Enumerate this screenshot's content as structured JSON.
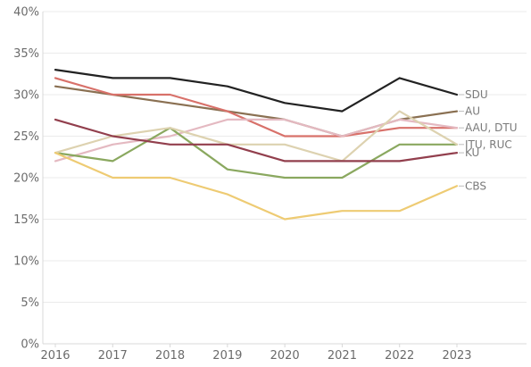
{
  "chart_data": {
    "type": "line",
    "title": "",
    "xlabel": "",
    "ylabel": "",
    "x": [
      2016,
      2017,
      2018,
      2019,
      2020,
      2021,
      2022,
      2023
    ],
    "ylim": [
      0,
      0.4
    ],
    "yticks": [
      0,
      0.05,
      0.1,
      0.15,
      0.2,
      0.25,
      0.3,
      0.35,
      0.4
    ],
    "ytick_labels": [
      "0%",
      "5%",
      "10%",
      "15%",
      "20%",
      "25%",
      "30%",
      "35%",
      "40%"
    ],
    "xtick_labels": [
      "2016",
      "2017",
      "2018",
      "2019",
      "2020",
      "2021",
      "2022",
      "2023"
    ],
    "grid": "horizontal",
    "legend": "end-of-line labels",
    "series": [
      {
        "color": "#222222",
        "values": [
          0.33,
          0.32,
          0.32,
          0.31,
          0.29,
          0.28,
          0.32,
          0.3
        ]
      },
      {
        "color": "#8a7052",
        "values": [
          0.31,
          0.3,
          0.29,
          0.28,
          0.27,
          0.25,
          0.27,
          0.28
        ]
      },
      {
        "color": "#d8716a",
        "values": [
          0.32,
          0.3,
          0.3,
          0.28,
          0.25,
          0.25,
          0.26,
          0.26
        ]
      },
      {
        "color": "#e4b9c1",
        "values": [
          0.22,
          0.24,
          0.25,
          0.27,
          0.27,
          0.25,
          0.27,
          0.26
        ]
      },
      {
        "color": "#8aa85f",
        "values": [
          0.23,
          0.22,
          0.26,
          0.21,
          0.2,
          0.2,
          0.24,
          0.24
        ]
      },
      {
        "color": "#ddd2b0",
        "values": [
          0.23,
          0.25,
          0.26,
          0.24,
          0.24,
          0.22,
          0.28,
          0.24
        ]
      },
      {
        "color": "#923f4d",
        "values": [
          0.27,
          0.25,
          0.24,
          0.24,
          0.22,
          0.22,
          0.22,
          0.23
        ]
      },
      {
        "color": "#eecb73",
        "values": [
          0.23,
          0.2,
          0.2,
          0.18,
          0.15,
          0.16,
          0.16,
          0.19
        ]
      }
    ],
    "end_labels": [
      {
        "text": "SDU",
        "value": 0.3
      },
      {
        "text": "AU",
        "value": 0.28
      },
      {
        "text": "AAU, DTU",
        "value": 0.26
      },
      {
        "text": "ITU, RUC",
        "value": 0.24
      },
      {
        "text": "KU",
        "value": 0.23
      },
      {
        "text": "CBS",
        "value": 0.19
      }
    ]
  }
}
